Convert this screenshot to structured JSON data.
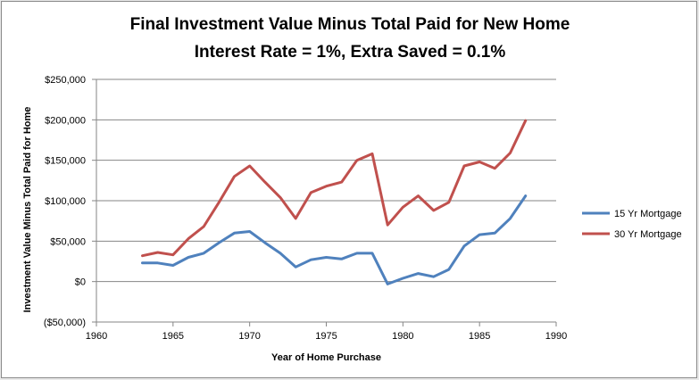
{
  "chart_data": {
    "type": "line",
    "title_lines": [
      "Final Investment Value Minus Total Paid for New Home",
      "Interest Rate = 1%, Extra Saved = 0.1%"
    ],
    "xlabel": "Year of Home Purchase",
    "ylabel": "Investment Value Minus Total Paid  for Home",
    "xlim": [
      1960,
      1990
    ],
    "ylim": [
      -50000,
      250000
    ],
    "x_ticks": [
      1960,
      1965,
      1970,
      1975,
      1980,
      1985,
      1990
    ],
    "x_tick_labels": [
      "1960",
      "1965",
      "1970",
      "1975",
      "1980",
      "1985",
      "1990"
    ],
    "y_ticks": [
      -50000,
      0,
      50000,
      100000,
      150000,
      200000,
      250000
    ],
    "y_tick_labels": [
      "($50,000)",
      "$0",
      "$50,000",
      "$100,000",
      "$150,000",
      "$200,000",
      "$250,000"
    ],
    "negative_label_color": "#ff0000",
    "grid": "horizontal",
    "legend_position": "right",
    "x": [
      1963,
      1964,
      1965,
      1966,
      1967,
      1968,
      1969,
      1970,
      1971,
      1972,
      1973,
      1974,
      1975,
      1976,
      1977,
      1978,
      1979,
      1980,
      1981,
      1982,
      1983,
      1984,
      1985,
      1986,
      1987,
      1988
    ],
    "series": [
      {
        "name": "15 Yr Mortgage",
        "color": "#4f81bd",
        "values": [
          23000,
          23000,
          20000,
          30000,
          35000,
          48000,
          60000,
          62000,
          48000,
          35000,
          18000,
          27000,
          30000,
          28000,
          35000,
          35000,
          -3000,
          4000,
          10000,
          6000,
          15000,
          44000,
          58000,
          60000,
          78000,
          106000
        ]
      },
      {
        "name": "30 Yr Mortgage",
        "color": "#c0504d",
        "values": [
          32000,
          36000,
          33000,
          53000,
          68000,
          98000,
          130000,
          143000,
          123000,
          104000,
          78000,
          110000,
          118000,
          123000,
          150000,
          158000,
          70000,
          92000,
          106000,
          88000,
          98000,
          143000,
          148000,
          140000,
          159000,
          199000
        ]
      }
    ]
  }
}
